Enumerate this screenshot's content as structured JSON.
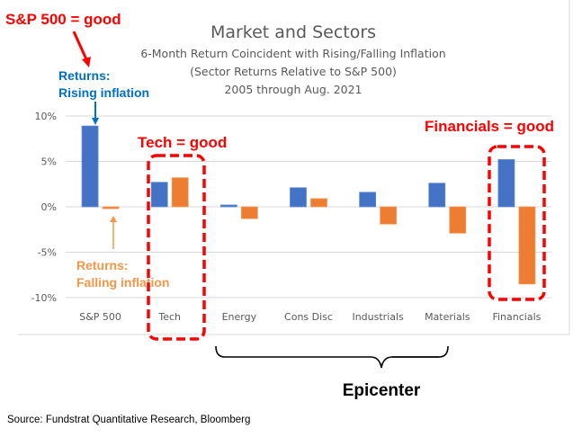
{
  "chart_data": {
    "type": "bar",
    "title": "Market and Sectors",
    "subtitle_lines": [
      "6-Month Return Coincident with Rising/Falling Inflation",
      "(Sector Returns Relative to S&P 500)",
      "2005 through Aug. 2021"
    ],
    "xlabel": "",
    "ylabel": "",
    "ylim": [
      -10,
      10
    ],
    "y_ticks": [
      10,
      5,
      0,
      -5,
      -10
    ],
    "y_tick_labels": [
      "10%",
      "5%",
      "0%",
      "-5%",
      "-10%"
    ],
    "grid": true,
    "categories": [
      "S&P 500",
      "Tech",
      "Energy",
      "Cons Disc",
      "Industrials",
      "Materials",
      "Financials"
    ],
    "series": [
      {
        "name": "Returns: Rising inflation",
        "color": "#4472C4",
        "values": [
          8.9,
          2.7,
          0.2,
          2.1,
          1.6,
          2.6,
          5.2
        ]
      },
      {
        "name": "Returns: Falling inflation",
        "color": "#ED7D31",
        "values": [
          -0.2,
          3.2,
          -1.3,
          0.9,
          -1.9,
          -2.9,
          -8.5
        ]
      }
    ],
    "annotations": {
      "sp500_good": "S&P  500 = good",
      "tech_good": "Tech = good",
      "financials_good": "Financials = good",
      "rising_label_1": "Returns:",
      "rising_label_2": "Rising inflation",
      "falling_label_1": "Returns:",
      "falling_label_2": "Falling inflation",
      "epicenter": "Epicenter"
    }
  },
  "colors": {
    "annotation_red": "#FF0000",
    "rising_blue": "#0070C0",
    "falling_orange": "#F79646"
  },
  "source": "Source: Fundstrat Quantitative Research, Bloomberg"
}
